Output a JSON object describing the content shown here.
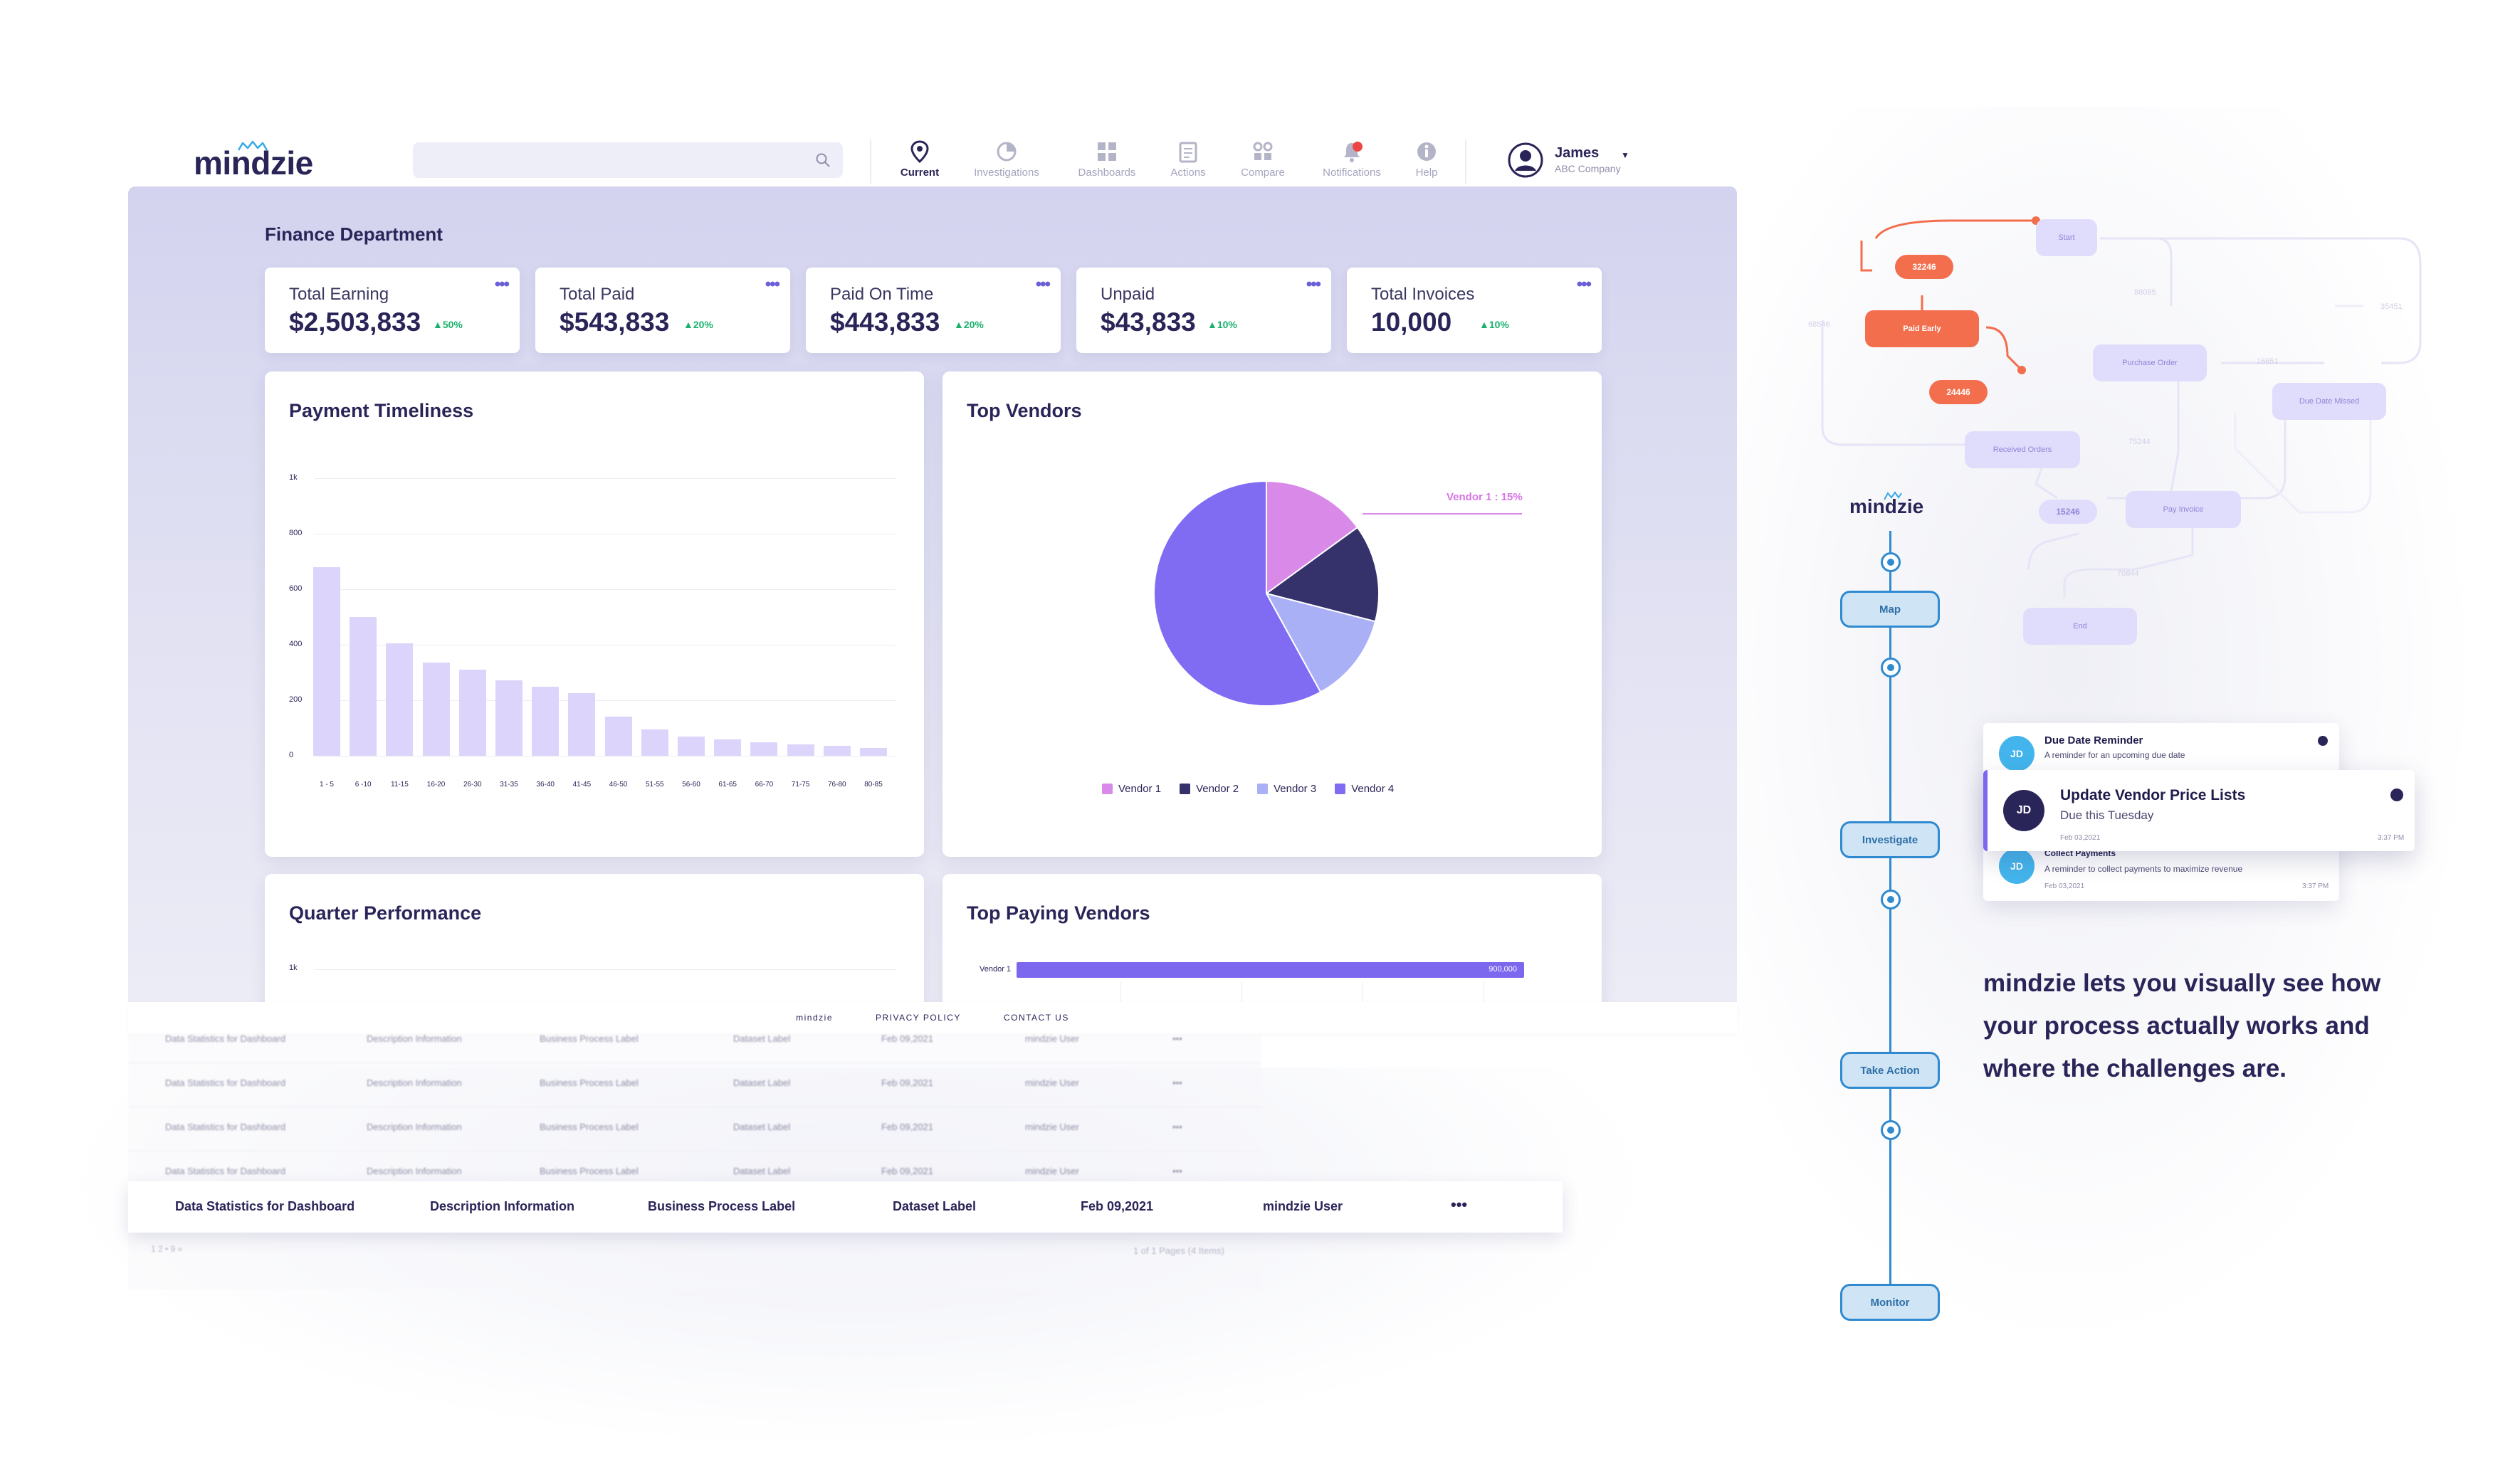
{
  "header": {
    "logo": "mindzie",
    "search": {
      "placeholder": ""
    },
    "nav": [
      {
        "label": "Current",
        "icon": "location-pin-icon"
      },
      {
        "label": "Investigations",
        "icon": "pie-chart-icon"
      },
      {
        "label": "Dashboards",
        "icon": "dashboard-grid-icon"
      },
      {
        "label": "Actions",
        "icon": "clipboard-icon"
      },
      {
        "label": "Compare",
        "icon": "compare-icon"
      },
      {
        "label": "Notifications",
        "icon": "bell-icon"
      },
      {
        "label": "Help",
        "icon": "info-icon"
      }
    ],
    "user": {
      "name": "James",
      "company": "ABC Company"
    }
  },
  "dashboard": {
    "title": "Finance Department",
    "kpis": [
      {
        "label": "Total Earning",
        "value": "$2,503,833",
        "delta": "▲50%"
      },
      {
        "label": "Total Paid",
        "value": "$543,833",
        "delta": "▲20%"
      },
      {
        "label": "Paid On Time",
        "value": "$443,833",
        "delta": "▲20%"
      },
      {
        "label": "Unpaid",
        "value": "$43,833",
        "delta": "▲10%"
      },
      {
        "label": "Total Invoices",
        "value": "10,000",
        "delta": "▲10%"
      }
    ],
    "more_glyph": "•••",
    "cards": {
      "payment_timeliness": "Payment Timeliness",
      "top_vendors": "Top Vendors",
      "quarter_performance": "Quarter Performance",
      "top_paying_vendors": "Top Paying Vendors"
    },
    "quarter_ytick": "1k",
    "top_paying": {
      "label": "Vendor 1",
      "value": 900000,
      "value_text": "900,000"
    }
  },
  "chart_data": [
    {
      "type": "bar",
      "title": "Payment Timeliness",
      "categories": [
        "1 - 5",
        "6 -10",
        "11-15",
        "16-20",
        "26-30",
        "31-35",
        "36-40",
        "41-45",
        "46-50",
        "51-55",
        "56-60",
        "61-65",
        "66-70",
        "71-75",
        "76-80",
        "80-85"
      ],
      "values": [
        680,
        500,
        405,
        335,
        310,
        272,
        250,
        225,
        140,
        95,
        70,
        58,
        50,
        42,
        35,
        28
      ],
      "yticks": [
        "0",
        "200",
        "400",
        "600",
        "800",
        "1k"
      ],
      "ylim": [
        0,
        1000
      ],
      "grid": true
    },
    {
      "type": "pie",
      "title": "Top Vendors",
      "labels": [
        "Vendor 1",
        "Vendor 2",
        "Vendor 3",
        "Vendor 4"
      ],
      "values": [
        15,
        14,
        13,
        58
      ],
      "colors": [
        "#d98ae8",
        "#35316b",
        "#a9b0f5",
        "#7f6cf2"
      ],
      "callout": "Vendor 1 : 15%",
      "legend": "bottom"
    }
  ],
  "footer": {
    "links": [
      "mindzie",
      "PRIVACY POLICY",
      "CONTACT US"
    ]
  },
  "table": {
    "header_row": [
      "Data Statistics for Dashboard",
      "Description Information",
      "Business Process Label",
      "Dataset Label",
      "Feb 09,2021",
      "mindzie User",
      "•••"
    ],
    "rows": [
      [
        "Data Statistics for Dashboard",
        "Description Information",
        "Business Process Label",
        "Dataset Label",
        "Feb 09,2021",
        "mindzie User",
        "•••"
      ],
      [
        "Data Statistics for Dashboard",
        "Description Information",
        "Business Process Label",
        "Dataset Label",
        "Feb 09,2021",
        "mindzie User",
        "•••"
      ],
      [
        "Data Statistics for Dashboard",
        "Description Information",
        "Business Process Label",
        "Dataset Label",
        "Feb 09,2021",
        "mindzie User",
        "•••"
      ],
      [
        "Data Statistics for Dashboard",
        "Description Information",
        "Business Process Label",
        "Dataset Label",
        "Feb 09,2021",
        "mindzie User",
        "•••"
      ]
    ],
    "pagination": "1  2  •  9  »",
    "page_info": "1 of 1 Pages (4 Items)"
  },
  "process_map": {
    "nodes": [
      "Start",
      "Paid Early",
      "Purchase Order",
      "Due Date Missed",
      "Received Orders",
      "Pay Invoice",
      "End"
    ],
    "pills": [
      "32246",
      "24446",
      "15246"
    ],
    "ghost_values": [
      "68546",
      "88085",
      "35451",
      "16651",
      "75244",
      "70844"
    ]
  },
  "timeline": {
    "logo": "mindzie",
    "steps": [
      "Map",
      "Investigate",
      "Take Action",
      "Monitor"
    ]
  },
  "notifications": {
    "items": [
      {
        "initials": "JD",
        "title": "Due Date Reminder",
        "subtitle": "A reminder for an upcoming due date"
      },
      {
        "initials": "JD",
        "title": "Collect Payments",
        "subtitle": "A reminder to collect payments to maximize revenue",
        "date": "Feb 03,2021",
        "time": "3:37 PM"
      }
    ],
    "featured": {
      "initials": "JD",
      "title": "Update Vendor Price Lists",
      "subtitle": "Due this Tuesday",
      "date": "Feb 03,2021",
      "time": "3:37 PM"
    }
  },
  "tagline": "mindzie lets you visually see how your process actually works and where the challenges are."
}
